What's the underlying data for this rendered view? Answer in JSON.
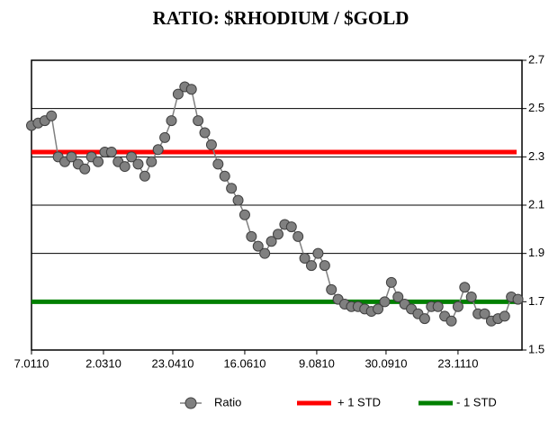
{
  "chart_data": {
    "type": "line",
    "title": "RATIO: $RHODIUM / $GOLD",
    "x": [
      0,
      5,
      10,
      15,
      20,
      25,
      30,
      35,
      40,
      45,
      50,
      55,
      60,
      65,
      70,
      75,
      80,
      85,
      90,
      95,
      100,
      105,
      110,
      115,
      120,
      125,
      130,
      135,
      140,
      145,
      150,
      155,
      160,
      165,
      170,
      175,
      180,
      185,
      190,
      195,
      200,
      205,
      210,
      215,
      220,
      225,
      230,
      235,
      240,
      245,
      250,
      255,
      260,
      265,
      270,
      275,
      280,
      285,
      290,
      295,
      300,
      305,
      310,
      315,
      320,
      325,
      330,
      335,
      340,
      345,
      350,
      355,
      360,
      365
    ],
    "series": [
      {
        "name": "Ratio",
        "color": "#808080",
        "marker_edge": "#404040",
        "values": [
          2.43,
          2.44,
          2.45,
          2.47,
          2.3,
          2.28,
          2.3,
          2.27,
          2.25,
          2.3,
          2.28,
          2.32,
          2.32,
          2.28,
          2.26,
          2.3,
          2.27,
          2.22,
          2.28,
          2.33,
          2.38,
          2.45,
          2.56,
          2.59,
          2.58,
          2.45,
          2.4,
          2.35,
          2.27,
          2.22,
          2.17,
          2.12,
          2.06,
          1.97,
          1.93,
          1.9,
          1.95,
          1.98,
          2.02,
          2.01,
          1.97,
          1.88,
          1.85,
          1.9,
          1.85,
          1.75,
          1.71,
          1.69,
          1.68,
          1.68,
          1.67,
          1.66,
          1.67,
          1.7,
          1.78,
          1.72,
          1.69,
          1.67,
          1.65,
          1.63,
          1.68,
          1.68,
          1.64,
          1.62,
          1.68,
          1.76,
          1.72,
          1.65,
          1.65,
          1.62,
          1.63,
          1.64,
          1.72,
          1.71
        ]
      }
    ],
    "reference_lines": [
      {
        "name": "+ 1 STD",
        "color": "#ff0000",
        "value": 2.32
      },
      {
        "name": "- 1 STD",
        "color": "#008000",
        "value": 1.7
      }
    ],
    "xlim": [
      0,
      368
    ],
    "xticks": [
      {
        "value": 0,
        "label": "7.0110"
      },
      {
        "value": 54,
        "label": "2.0310"
      },
      {
        "value": 106,
        "label": "23.0410"
      },
      {
        "value": 160,
        "label": "16.0610"
      },
      {
        "value": 214,
        "label": "9.0810"
      },
      {
        "value": 266,
        "label": "30.0910"
      },
      {
        "value": 320,
        "label": "23.1110"
      }
    ],
    "ylim": [
      1.5,
      2.7
    ],
    "yticks": [
      1.5,
      1.7,
      1.9,
      2.1,
      2.3,
      2.5,
      2.7
    ],
    "grid": true,
    "legend": "bottom"
  }
}
